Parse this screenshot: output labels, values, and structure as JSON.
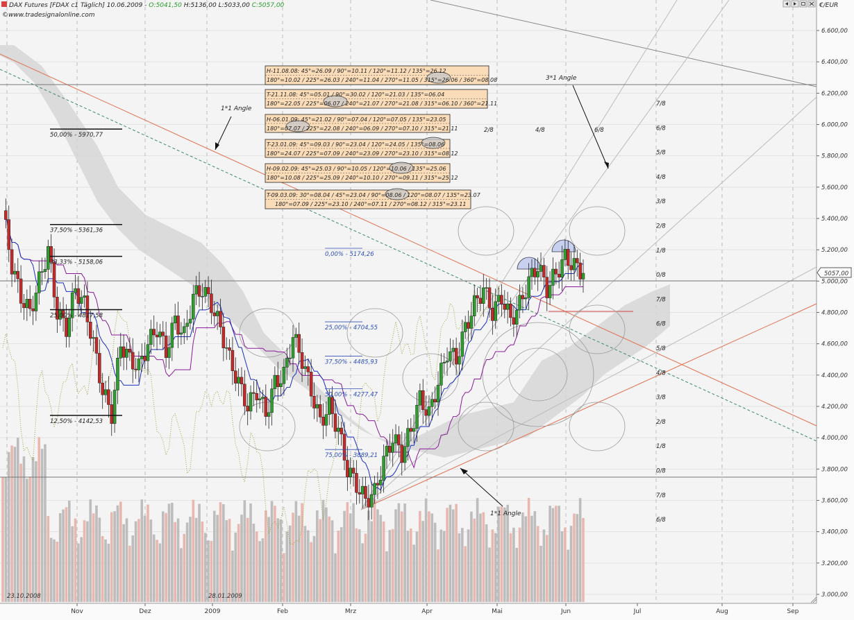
{
  "header": {
    "title": "DAX Futures [FDAX c1 Täglich] 10.06.2009 - ",
    "open": "O:5041,50",
    "high": "H:5136,00",
    "low": "L:5033,00",
    "close": "C:5057,00",
    "website": "www.tradesignalonline.com",
    "currency": "€/EUR",
    "last_price": "5057,00",
    "copyright_symbol": "©"
  },
  "colors": {
    "up_candle": "#2e9e2e",
    "down_candle": "#c42a2a",
    "tenkan": "#1a2fc0",
    "kijun": "#8a1a9a",
    "cloud": "#cfcfcf",
    "volume": "#bdbdbd",
    "gann_line": "#e07050",
    "note_box": "#fbdcb8"
  },
  "chart_data": {
    "type": "candlestick",
    "x": [
      "Nov",
      "Dez",
      "2009",
      "Feb",
      "Mrz",
      "Apr",
      "Mai",
      "Jun",
      "Jul",
      "Aug",
      "Sep"
    ],
    "ylabel": "€/EUR",
    "ylim": [
      2950,
      6720
    ],
    "y_ticks": [
      "6.600,00",
      "6.400,00",
      "6.200,00",
      "6.000,00",
      "5.800,00",
      "5.600,00",
      "5.400,00",
      "5.200,00",
      "5.000,00",
      "4.800,00",
      "4.600,00",
      "4.400,00",
      "4.200,00",
      "4.000,00",
      "3.800,00",
      "3.600,00",
      "3.400,00",
      "3.200,00",
      "3.000,00"
    ],
    "y_tick_values": [
      6600,
      6400,
      6200,
      6000,
      5800,
      5600,
      5400,
      5200,
      5000,
      4800,
      4600,
      4400,
      4200,
      4000,
      3800,
      3600,
      3400,
      3200,
      3000
    ],
    "last_close": 5057,
    "close_series_approx": [
      5450,
      5100,
      4900,
      4800,
      5000,
      5200,
      4800,
      4700,
      4950,
      4850,
      4600,
      4300,
      4150,
      4600,
      4500,
      4450,
      4600,
      4700,
      4550,
      4750,
      4650,
      4900,
      4950,
      4850,
      4700,
      4500,
      4350,
      4200,
      4300,
      4150,
      4350,
      4400,
      4650,
      4500,
      4300,
      4100,
      4200,
      4050,
      3800,
      3700,
      3600,
      3650,
      3850,
      4000,
      3900,
      4050,
      4250,
      4150,
      4350,
      4550,
      4500,
      4700,
      4850,
      4950,
      4800,
      4900,
      4750,
      4850,
      5000,
      5100,
      4950,
      5050,
      5150,
      5100,
      5050
    ],
    "fib_levels": [
      {
        "label": "50,00% - 5970,77",
        "value": 5970.77
      },
      {
        "label": "37,50% - 5361,36",
        "value": 5361.36
      },
      {
        "label": "33,33% - 5158,06",
        "value": 5158.06
      },
      {
        "label": "25,00% - 4817,58",
        "value": 4817.58
      },
      {
        "label": "12,50% - 4142,53",
        "value": 4142.53
      }
    ],
    "fib_levels_blue": [
      {
        "label": "0,00% - 5174,26",
        "value": 5174.26
      },
      {
        "label": "25,00% - 4704,55",
        "value": 4704.55
      },
      {
        "label": "37,50% - 4485,93",
        "value": 4485.93
      },
      {
        "label": "50,00% - 4277,47",
        "value": 4277.47
      },
      {
        "label": "75,00% - 3889,21",
        "value": 3889.21
      }
    ],
    "octaves_right": [
      "7/8",
      "6/8",
      "5/8",
      "4/8",
      "3/8",
      "2/8",
      "1/8",
      "0/8",
      "7/8",
      "6/8",
      "5/8",
      "4/8",
      "3/8",
      "2/8",
      "1/8",
      "0/8",
      "7/8",
      "6/8"
    ],
    "octaves_top": [
      "2/8",
      "4/8",
      "6/8"
    ],
    "annotations": [
      "3*1 Angle",
      "1*1 Angle",
      "1*1 Angle"
    ],
    "note_boxes": [
      {
        "line1": "H-11.08.08: 45°=26.09 / 90°=10.11 / 120°=11.12 / 135°=26.12",
        "line2": "180°=10.02 / 225°=26.03 / 240°=11.04 / 270°=11.05 / 315°=26.06 / 360°=08.08"
      },
      {
        "line1": "T-21.11.08: 45°=05.01 / 90°=30.02 / 120°=21.03 / 135°=06.04",
        "line2": "180°=22.05 / 225°=06.07 / 240°=21.07 / 270°=21.08 / 315°=06.10 / 360°=21.11"
      },
      {
        "line1": "H-06.01.09: 45°=21.02 / 90°=07.04 / 120°=07.05 / 135°=23.05",
        "line2": "180°=07.07 / 225°=22.08 / 240°=06.09 / 270°=07.10 / 315°=21.11"
      },
      {
        "line1": "T-23.01.09: 45°=09.03 / 90°=23.04 / 120°=24.05 / 135°=08.06",
        "line2": "180°=24.07 / 225°=07.09 / 240°=23.09 / 270°=23.10 / 315°=08.12"
      },
      {
        "line1": "H-09.02.09: 45°=25.03 / 90°=10.05 / 120°=10.06 / 135°=25.06",
        "line2": "180°=10.08 / 225°=25.09 / 240°=10.10 / 270°=09.11 / 315°=25.12"
      },
      {
        "line1": "T-09.03.09: 30°=08.04 / 45°=23.04 / 90°=08.06 / 120°=08.07 / 135°=23.07",
        "line2": "180°=07.09 / 225°=23.10 / 240°=07.11 / 270°=08.12 / 315°=23.11"
      }
    ],
    "bottom_dates": [
      "23.10.2008",
      "28.01.2009"
    ]
  }
}
